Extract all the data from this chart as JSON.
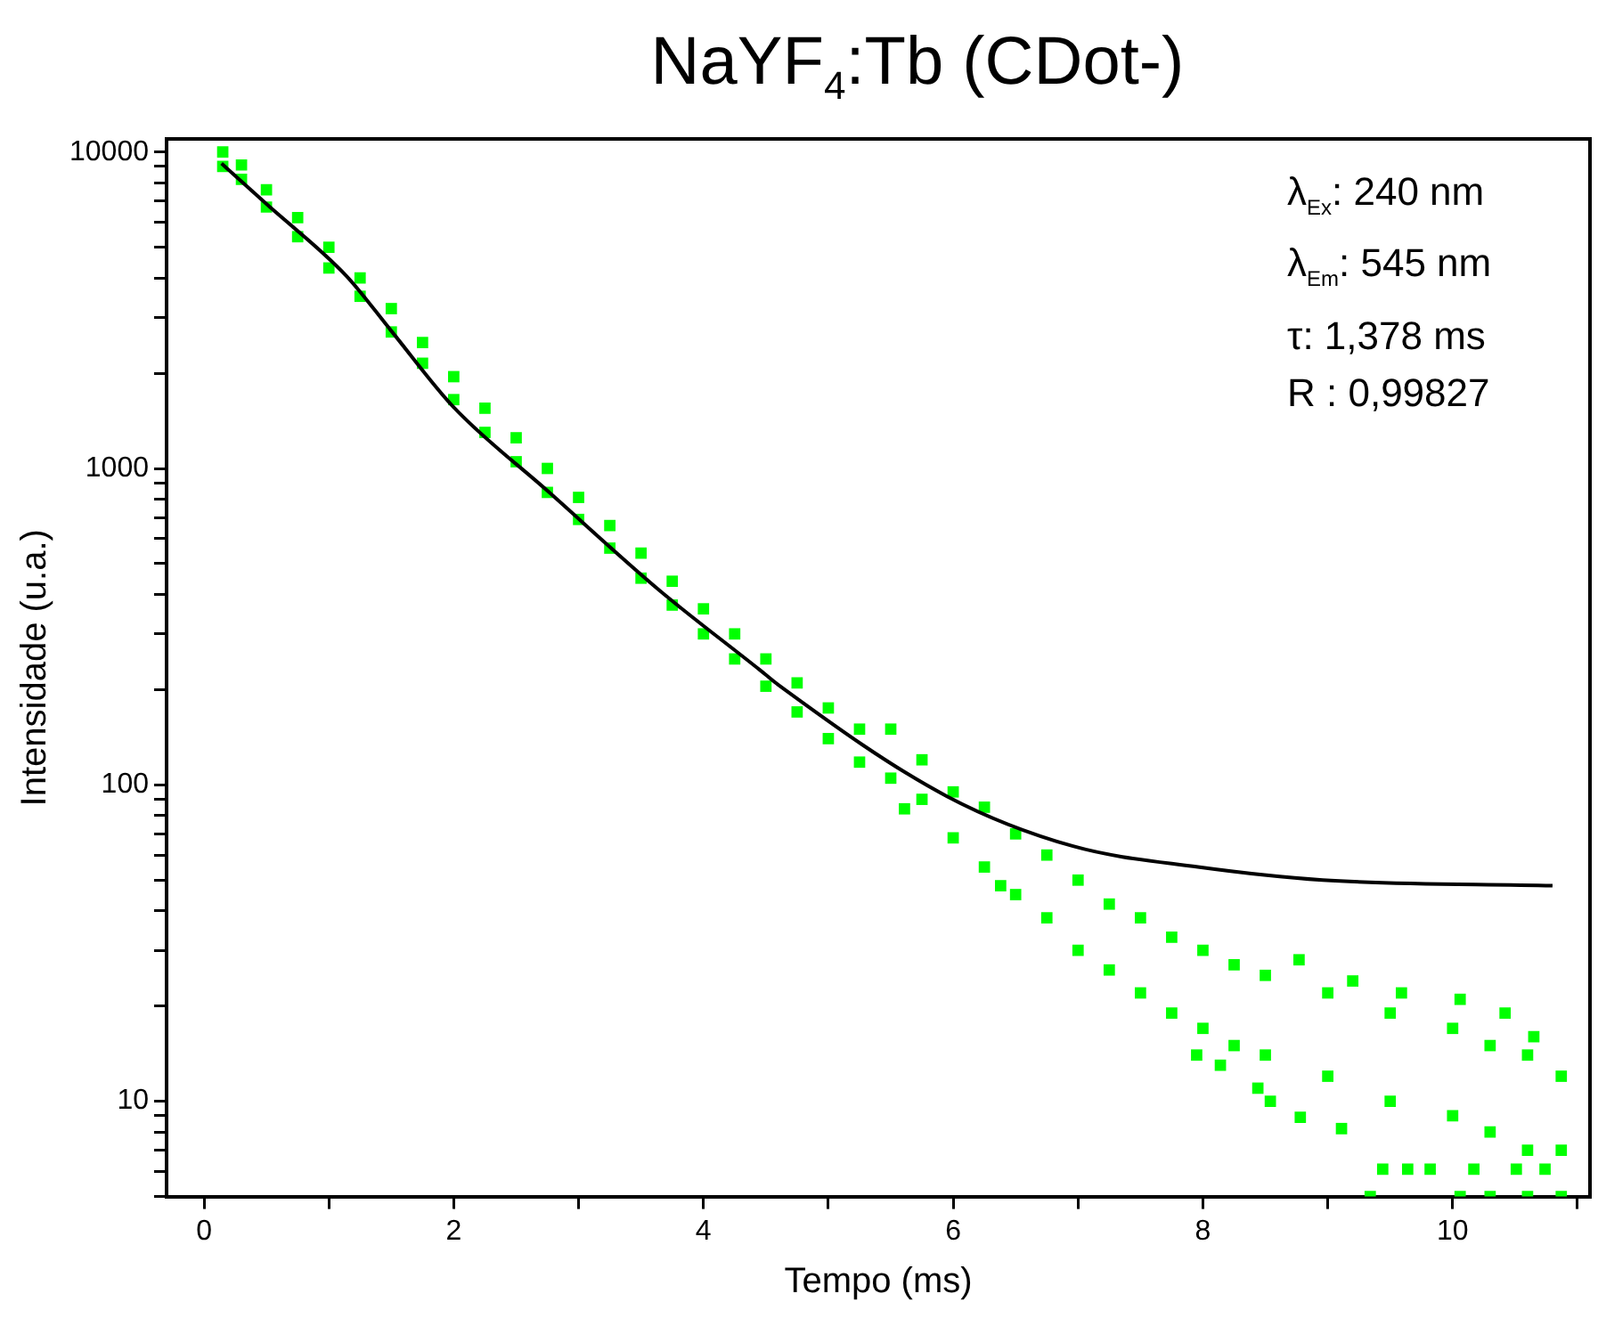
{
  "chart_data": {
    "type": "scatter",
    "title": "NaYF$_{4}$:Tb (CDot-)",
    "xlabel": "Tempo (ms)",
    "ylabel": "Intensidade (u.a.)",
    "log": "y",
    "grid": false,
    "legend": false,
    "xlim": [
      -0.3,
      11.1
    ],
    "xticks": [
      0,
      {
        "value": 1,
        "label": null
      },
      2,
      {
        "value": 3,
        "label": null
      },
      4,
      {
        "value": 5,
        "label": null
      },
      6,
      {
        "value": 7,
        "label": null
      },
      8,
      {
        "value": 9,
        "label": null
      },
      10,
      {
        "value": 11,
        "label": null
      }
    ],
    "ylim": [
      5,
      11000
    ],
    "yticks": [
      {
        "value": 5,
        "label": null
      },
      {
        "value": 6,
        "label": null
      },
      {
        "value": 7,
        "label": null
      },
      {
        "value": 8,
        "label": null
      },
      {
        "value": 9,
        "label": null
      },
      10,
      {
        "value": 20,
        "label": null
      },
      {
        "value": 30,
        "label": null
      },
      {
        "value": 40,
        "label": null
      },
      {
        "value": 50,
        "label": null
      },
      {
        "value": 60,
        "label": null
      },
      {
        "value": 70,
        "label": null
      },
      {
        "value": 80,
        "label": null
      },
      {
        "value": 90,
        "label": null
      },
      100,
      {
        "value": 200,
        "label": null
      },
      {
        "value": 300,
        "label": null
      },
      {
        "value": 400,
        "label": null
      },
      {
        "value": 500,
        "label": null
      },
      {
        "value": 600,
        "label": null
      },
      {
        "value": 700,
        "label": null
      },
      {
        "value": 800,
        "label": null
      },
      {
        "value": 900,
        "label": null
      },
      1000,
      {
        "value": 2000,
        "label": null
      },
      {
        "value": 3000,
        "label": null
      },
      {
        "value": 4000,
        "label": null
      },
      {
        "value": 5000,
        "label": null
      },
      {
        "value": 6000,
        "label": null
      },
      {
        "value": 7000,
        "label": null
      },
      {
        "value": 8000,
        "label": null
      },
      {
        "value": 9000,
        "label": null
      },
      10000
    ],
    "annotations": [
      "λ$_{Ex}$: 240 nm",
      "λ$_{Em}$: 545 nm",
      "τ: 1,378 ms",
      "R : 0,99827"
    ],
    "series": [
      {
        "type": "scatter",
        "color": "#00ff00",
        "marker": "square",
        "x": [
          0.15,
          0.15,
          0.3,
          0.3,
          0.5,
          0.5,
          0.75,
          0.75,
          1,
          1,
          1.25,
          1.25,
          1.5,
          1.5,
          1.75,
          1.75,
          2,
          2,
          2.25,
          2.25,
          2.5,
          2.5,
          2.75,
          2.75,
          3,
          3,
          3.25,
          3.25,
          3.5,
          3.5,
          3.75,
          3.75,
          4,
          4,
          4.25,
          4.25,
          4.5,
          4.5,
          4.75,
          4.75,
          5,
          5,
          5.25,
          5.25,
          5.5,
          5.5,
          5.61,
          5.75,
          5.75,
          6,
          6,
          6.25,
          6.25,
          6.38,
          6.5,
          6.5,
          6.75,
          6.75,
          7,
          7,
          7.25,
          7.25,
          7.5,
          7.5,
          7.75,
          7.75,
          7.95,
          8,
          8,
          8.14,
          8.25,
          8.25,
          8.44,
          8.5,
          8.5,
          8.54,
          8.77,
          8.78,
          9,
          9,
          9.11,
          9.2,
          9.34,
          9.44,
          9.5,
          9.5,
          9.59,
          9.64,
          9.82,
          10,
          10,
          10.06,
          10.06,
          10.17,
          10.3,
          10.3,
          10.3,
          10.42,
          10.51,
          10.6,
          10.6,
          10.6,
          10.65,
          10.74,
          10.87,
          10.87,
          10.87
        ],
        "values": [
          10000,
          9000,
          9100,
          8200,
          7600,
          6700,
          6200,
          5400,
          5000,
          4300,
          4000,
          3500,
          3200,
          2700,
          2500,
          2150,
          1950,
          1650,
          1550,
          1300,
          1250,
          1050,
          1000,
          840,
          810,
          690,
          660,
          560,
          540,
          450,
          440,
          370,
          360,
          300,
          300,
          250,
          250,
          205,
          210,
          170,
          175,
          140,
          150,
          118,
          150,
          105,
          84,
          120,
          90,
          95,
          68,
          85,
          55,
          48,
          70,
          45,
          60,
          38,
          50,
          30,
          42,
          26,
          38,
          22,
          33,
          19,
          14,
          30,
          17,
          13,
          27,
          15,
          11,
          25,
          14,
          10,
          28,
          8.9,
          22,
          12,
          8.2,
          24,
          5,
          6.1,
          19,
          10,
          22,
          6.1,
          6.1,
          17,
          9,
          21,
          5,
          6.1,
          15,
          8,
          5,
          19,
          6.1,
          14,
          7,
          5,
          16,
          6.1,
          12,
          7,
          5
        ]
      },
      {
        "type": "line",
        "color": "#000000",
        "marker": "none",
        "line_style": "solid",
        "x": [
          0.14,
          0.5,
          1.14,
          1.5,
          2,
          2.75,
          3.65,
          4.45,
          4.6,
          5.95,
          6.96,
          7.96,
          8.96,
          10.8
        ],
        "values": [
          9200,
          6850,
          4060,
          2720,
          1560,
          850,
          411,
          231,
          207,
          92,
          64,
          55,
          50,
          48
        ]
      }
    ]
  }
}
